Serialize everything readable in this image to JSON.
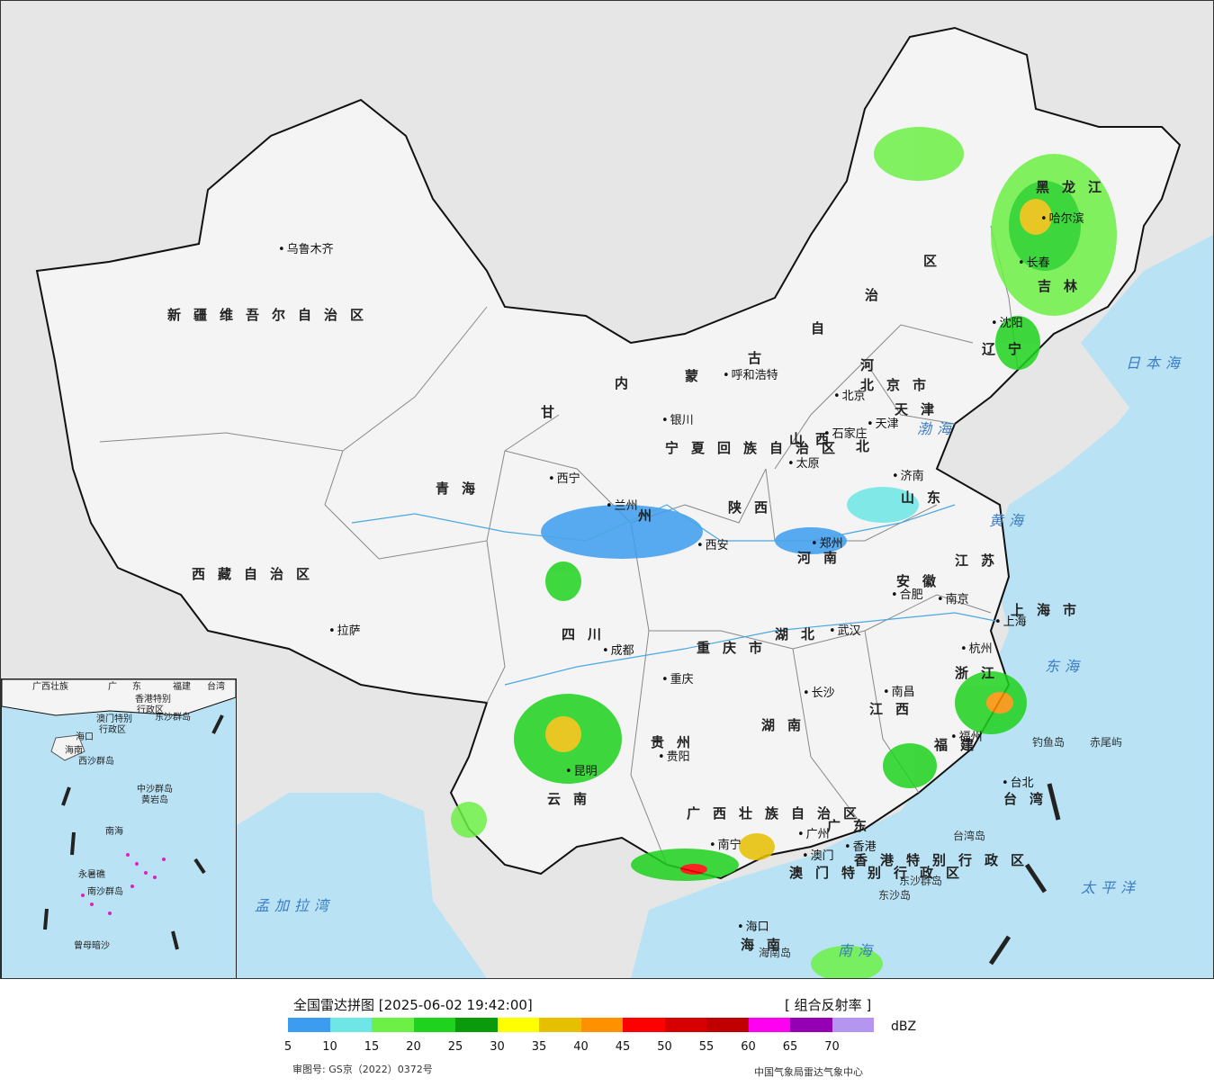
{
  "map": {
    "provinces": [
      {
        "id": "xinjiang",
        "text": "新疆维吾尔自治区"
      },
      {
        "id": "xizang",
        "text": "西藏自治区"
      },
      {
        "id": "qinghai",
        "text": "青海"
      },
      {
        "id": "gansu",
        "text": "甘"
      },
      {
        "id": "neimenggu-1",
        "text": "内"
      },
      {
        "id": "neimenggu-2",
        "text": "蒙"
      },
      {
        "id": "neimenggu-3",
        "text": "古"
      },
      {
        "id": "neimenggu-4",
        "text": "自"
      },
      {
        "id": "neimenggu-5",
        "text": "治"
      },
      {
        "id": "neimenggu-6",
        "text": "区"
      },
      {
        "id": "heilongjiang",
        "text": "黑龙江"
      },
      {
        "id": "jilin",
        "text": "吉林"
      },
      {
        "id": "liaoning",
        "text": "辽宁"
      },
      {
        "id": "hebei-1",
        "text": "河"
      },
      {
        "id": "hebei-2",
        "text": "北"
      },
      {
        "id": "shanxi",
        "text": "山西"
      },
      {
        "id": "shandong",
        "text": "山东"
      },
      {
        "id": "henan",
        "text": "河南"
      },
      {
        "id": "shaanxi",
        "text": "陕西"
      },
      {
        "id": "ningxia",
        "text": "宁夏回族自治区"
      },
      {
        "id": "sichuan",
        "text": "四川"
      },
      {
        "id": "chongqing",
        "text": "重庆市"
      },
      {
        "id": "hubei",
        "text": "湖北"
      },
      {
        "id": "hunan",
        "text": "湖南"
      },
      {
        "id": "anhui",
        "text": "安徽"
      },
      {
        "id": "jiangsu",
        "text": "江苏"
      },
      {
        "id": "shanghai",
        "text": "上海市"
      },
      {
        "id": "zhejiang",
        "text": "浙江"
      },
      {
        "id": "jiangxi",
        "text": "江西"
      },
      {
        "id": "fujian",
        "text": "福建"
      },
      {
        "id": "guizhou",
        "text": "贵州"
      },
      {
        "id": "yunnan",
        "text": "云南"
      },
      {
        "id": "guangxi",
        "text": "广西壮族自治区"
      },
      {
        "id": "guangdong",
        "text": "广东"
      },
      {
        "id": "hainan",
        "text": "海南"
      },
      {
        "id": "taiwan",
        "text": "台湾"
      },
      {
        "id": "tianjin",
        "text": "天津"
      },
      {
        "id": "beijing-prov",
        "text": "北京市"
      },
      {
        "id": "hongkong",
        "text": "香港特别行政区"
      },
      {
        "id": "macau",
        "text": "澳门特别行政区"
      },
      {
        "id": "gansu-zhou",
        "text": "州"
      }
    ],
    "cities": [
      {
        "id": "urumqi",
        "text": "乌鲁木齐"
      },
      {
        "id": "lhasa",
        "text": "拉萨"
      },
      {
        "id": "xining",
        "text": "西宁"
      },
      {
        "id": "lanzhou",
        "text": "兰州"
      },
      {
        "id": "yinchuan",
        "text": "银川"
      },
      {
        "id": "hohhot",
        "text": "呼和浩特"
      },
      {
        "id": "beijing",
        "text": "北京"
      },
      {
        "id": "tianjin-c",
        "text": "天津"
      },
      {
        "id": "shijiazhuang",
        "text": "石家庄"
      },
      {
        "id": "taiyuan",
        "text": "太原"
      },
      {
        "id": "jinan",
        "text": "济南"
      },
      {
        "id": "zhengzhou",
        "text": "郑州"
      },
      {
        "id": "xian",
        "text": "西安"
      },
      {
        "id": "chengdu",
        "text": "成都"
      },
      {
        "id": "chongqing-c",
        "text": "重庆"
      },
      {
        "id": "wuhan",
        "text": "武汉"
      },
      {
        "id": "hefei",
        "text": "合肥"
      },
      {
        "id": "nanjing",
        "text": "南京"
      },
      {
        "id": "shanghai-c",
        "text": "上海"
      },
      {
        "id": "hangzhou",
        "text": "杭州"
      },
      {
        "id": "nanchang",
        "text": "南昌"
      },
      {
        "id": "changsha",
        "text": "长沙"
      },
      {
        "id": "fuzhou",
        "text": "福州"
      },
      {
        "id": "guiyang",
        "text": "贵阳"
      },
      {
        "id": "kunming",
        "text": "昆明"
      },
      {
        "id": "nanning",
        "text": "南宁"
      },
      {
        "id": "guangzhou",
        "text": "广州"
      },
      {
        "id": "macau-c",
        "text": "澳门"
      },
      {
        "id": "hongkong-c",
        "text": "香港"
      },
      {
        "id": "haikou",
        "text": "海口"
      },
      {
        "id": "taibei",
        "text": "台北"
      },
      {
        "id": "shenyang",
        "text": "沈阳"
      },
      {
        "id": "changchun",
        "text": "长春"
      },
      {
        "id": "harbin",
        "text": "哈尔滨"
      }
    ],
    "seas": [
      {
        "id": "bohai",
        "text": "渤海"
      },
      {
        "id": "huanghai",
        "text": "黄海"
      },
      {
        "id": "donghai",
        "text": "东海"
      },
      {
        "id": "nanhai",
        "text": "南海"
      },
      {
        "id": "taipingyang",
        "text": "太平洋"
      },
      {
        "id": "ribenhai",
        "text": "日本海"
      },
      {
        "id": "mengjiala",
        "text": "孟加拉湾"
      }
    ],
    "islands": [
      {
        "id": "diaoyu",
        "text": "钓鱼岛"
      },
      {
        "id": "chiwei",
        "text": "赤尾屿"
      },
      {
        "id": "taiwan-island",
        "text": "台湾岛"
      },
      {
        "id": "hainan-island",
        "text": "海南岛"
      },
      {
        "id": "dongsha-1",
        "text": "东沙群岛"
      },
      {
        "id": "dongsha-2",
        "text": "东沙岛"
      }
    ],
    "inset_labels": [
      {
        "id": "in-guangxi",
        "text": "广西壮族"
      },
      {
        "id": "in-guang",
        "text": "广"
      },
      {
        "id": "in-dong",
        "text": "东"
      },
      {
        "id": "in-fujian",
        "text": "福建"
      },
      {
        "id": "in-taiwan",
        "text": "台湾"
      },
      {
        "id": "in-hk",
        "text": "香港特别"
      },
      {
        "id": "in-hk2",
        "text": "行政区"
      },
      {
        "id": "in-macau",
        "text": "澳门特别"
      },
      {
        "id": "in-macau2",
        "text": "行政区"
      },
      {
        "id": "in-dongsha",
        "text": "东沙群岛"
      },
      {
        "id": "in-haikou",
        "text": "海口"
      },
      {
        "id": "in-hainan",
        "text": "海南"
      },
      {
        "id": "in-xisha",
        "text": "西沙群岛"
      },
      {
        "id": "in-zhongsha",
        "text": "中沙群岛"
      },
      {
        "id": "in-huangyan",
        "text": "黄岩岛"
      },
      {
        "id": "in-nanhai",
        "text": "南海"
      },
      {
        "id": "in-yongshu",
        "text": "永暑礁"
      },
      {
        "id": "in-nansha",
        "text": "南沙群岛"
      },
      {
        "id": "in-zengmu",
        "text": "曾母暗沙"
      }
    ]
  },
  "legend": {
    "title": "全国雷达拼图 [2025-06-02 19:42:00]",
    "product": "[ 组合反射率 ]",
    "unit": "dBZ",
    "ticks": [
      "5",
      "10",
      "15",
      "20",
      "25",
      "30",
      "35",
      "40",
      "45",
      "50",
      "55",
      "60",
      "65",
      "70"
    ],
    "colors": [
      "#3c9cf0",
      "#6ee6e6",
      "#6cf046",
      "#1ed21e",
      "#0a9b0a",
      "#ffff00",
      "#e6c000",
      "#ff9000",
      "#ff0000",
      "#d60000",
      "#c00000",
      "#ff00f0",
      "#9600b4",
      "#b496f0"
    ],
    "approval": "审图号: GS京（2022）0372号",
    "center": "中国气象局雷达气象中心"
  }
}
